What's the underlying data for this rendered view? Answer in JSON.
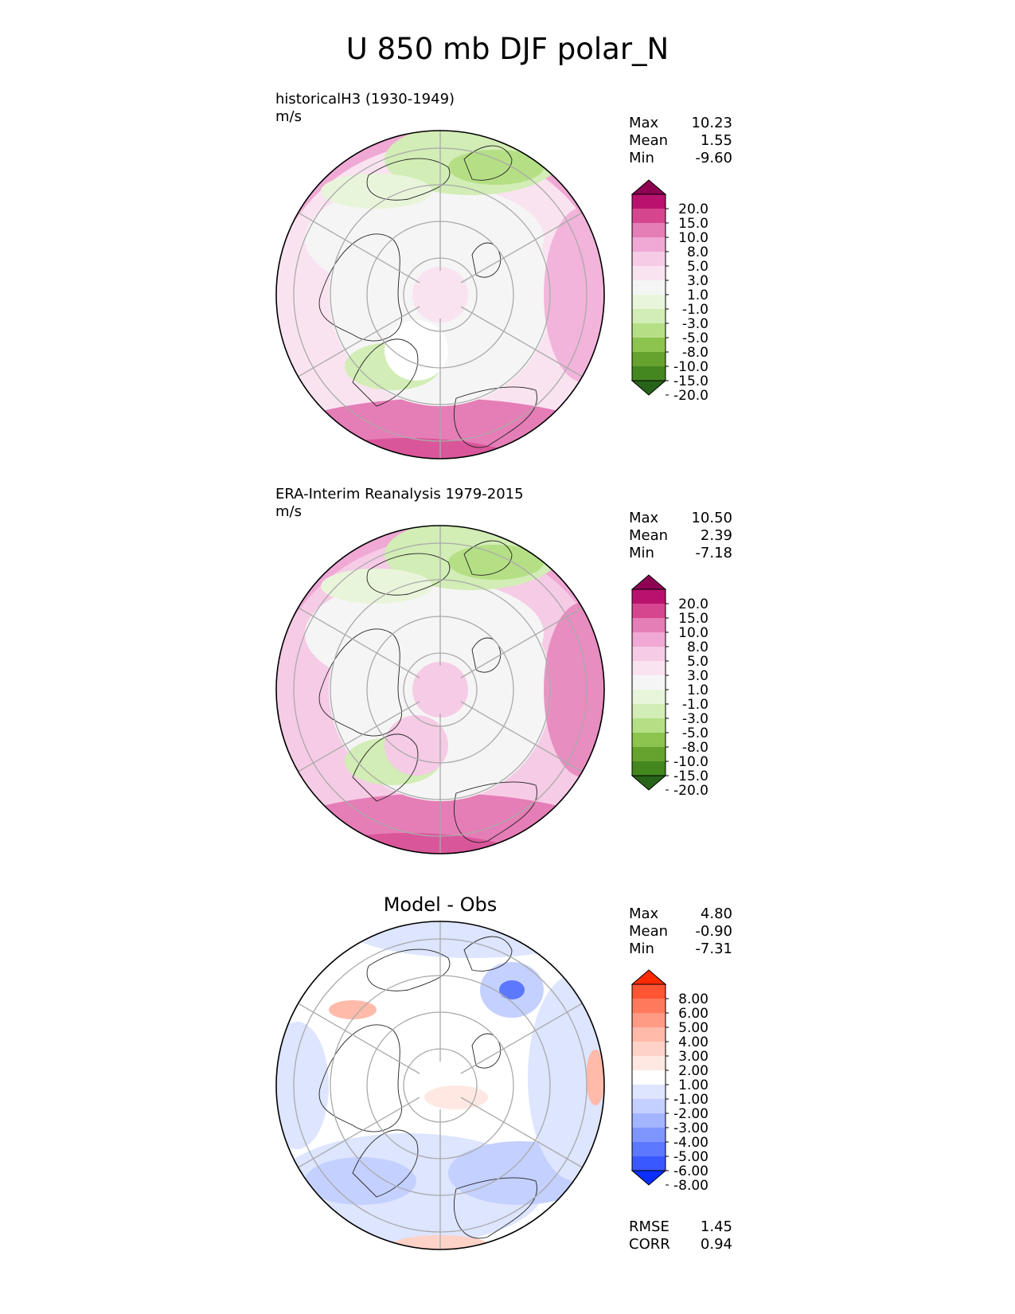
{
  "title": "U 850 mb DJF polar_N",
  "panels": [
    {
      "name": "test",
      "title_line1": "historicalH3 (1930-1949)",
      "title_line2": "m/s",
      "stats": [
        {
          "label": "Max",
          "value": "10.23"
        },
        {
          "label": "Mean",
          "value": "1.55"
        },
        {
          "label": "Min",
          "value": "-9.60"
        }
      ]
    },
    {
      "name": "reference",
      "title_line1": "ERA-Interim Reanalysis 1979-2015",
      "title_line2": "m/s",
      "stats": [
        {
          "label": "Max",
          "value": "10.50"
        },
        {
          "label": "Mean",
          "value": "2.39"
        },
        {
          "label": "Min",
          "value": "-7.18"
        }
      ]
    },
    {
      "name": "diff",
      "title_center": "Model - Obs",
      "stats": [
        {
          "label": "Max",
          "value": "4.80"
        },
        {
          "label": "Mean",
          "value": "-0.90"
        },
        {
          "label": "Min",
          "value": "-7.31"
        }
      ],
      "extra_stats": [
        {
          "label": "RMSE",
          "value": "1.45"
        },
        {
          "label": "CORR",
          "value": "0.94"
        }
      ]
    }
  ],
  "colorbars": {
    "field": {
      "labels": [
        "20.0",
        "15.0",
        "10.0",
        "8.0",
        "5.0",
        "3.0",
        "1.0",
        "-1.0",
        "-3.0",
        "-5.0",
        "-8.0",
        "-10.0",
        "-15.0",
        "-20.0"
      ],
      "colors": [
        "#8e0152",
        "#b9126e",
        "#d6468e",
        "#e57db6",
        "#f0a8d4",
        "#f6cbe5",
        "#fae3f0",
        "#f5f5f5",
        "#e9f5da",
        "#d2edb5",
        "#b5df85",
        "#8cc44f",
        "#66a32e",
        "#43871e",
        "#276419"
      ]
    },
    "diff": {
      "labels": [
        "8.00",
        "6.00",
        "5.00",
        "4.00",
        "3.00",
        "2.00",
        "1.00",
        "-1.00",
        "-2.00",
        "-3.00",
        "-4.00",
        "-5.00",
        "-6.00",
        "-8.00"
      ],
      "colors": [
        "#ff2a00",
        "#ff5534",
        "#ff7a5c",
        "#ff9a84",
        "#ffbaaa",
        "#ffd2c8",
        "#ffe8e2",
        "#ffffff",
        "#dde5ff",
        "#c4d0ff",
        "#a3b5ff",
        "#8096ff",
        "#5c78ff",
        "#3a58ff",
        "#0a2fff"
      ]
    }
  }
}
